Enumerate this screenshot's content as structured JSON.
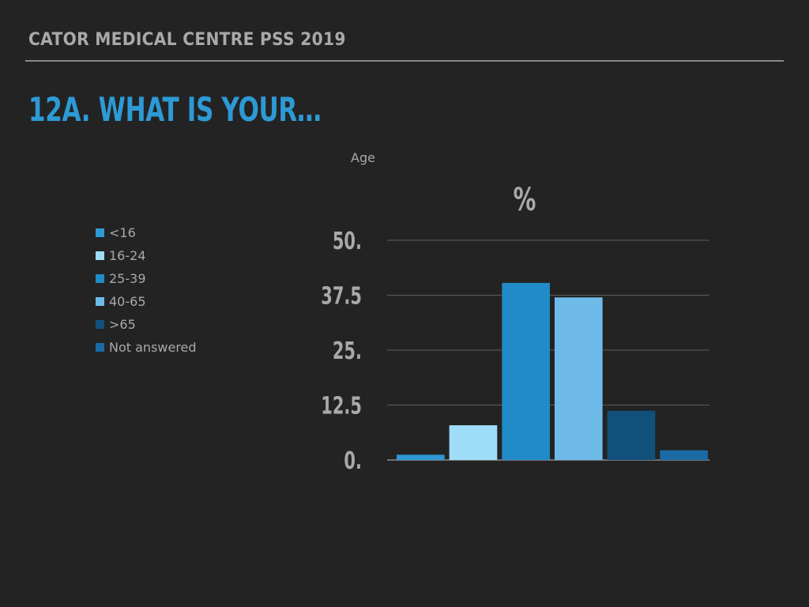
{
  "header": {
    "title": "CATOR MEDICAL CENTRE PSS 2019"
  },
  "slide": {
    "title": "12A. WHAT IS YOUR…"
  },
  "chart_data": {
    "type": "bar",
    "title": "Age",
    "ylabel": "%",
    "xlabel": "",
    "ylim": [
      0,
      50
    ],
    "yticks": [
      "0.",
      "12.5",
      "25.",
      "37.5",
      "50."
    ],
    "grid": true,
    "legend_position": "left",
    "categories": [
      "<16",
      "16-24",
      "25-39",
      "40-65",
      ">65",
      "Not answered"
    ],
    "values": [
      1.2,
      7.9,
      40.3,
      37.0,
      11.2,
      2.2
    ],
    "colors": [
      "#2d9ad6",
      "#9edcf8",
      "#208bc6",
      "#6ebbe9",
      "#11507a",
      "#1a6aa6"
    ]
  }
}
